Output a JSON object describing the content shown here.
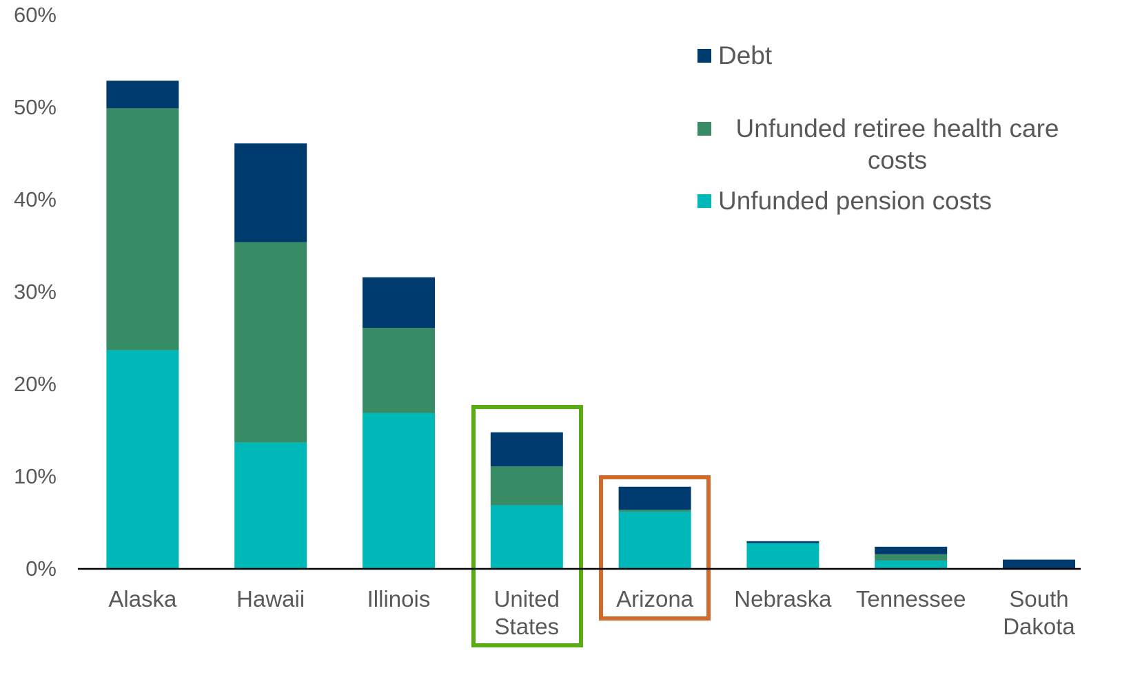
{
  "chart_data": {
    "type": "stacked_bar",
    "categories": [
      "Alaska",
      "Hawaii",
      "Illinois",
      "United States",
      "Arizona",
      "Nebraska",
      "Tennessee",
      "South Dakota"
    ],
    "series": [
      {
        "name": "Unfunded pension costs",
        "color": "#00b8b8",
        "values": [
          23.7,
          13.7,
          16.9,
          6.9,
          6.2,
          2.8,
          0.9,
          0
        ]
      },
      {
        "name": "Unfunded retiree health care costs",
        "color": "#378c66",
        "values": [
          26.2,
          21.7,
          9.2,
          4.2,
          0.2,
          0,
          0.7,
          0
        ]
      },
      {
        "name": "Debt",
        "color": "#003b6f",
        "values": [
          3.0,
          10.7,
          5.5,
          3.7,
          2.5,
          0.2,
          0.8,
          1.0
        ]
      }
    ],
    "ylim": [
      0,
      60
    ],
    "yticks": [
      {
        "value": 0,
        "label": "0%"
      },
      {
        "value": 10,
        "label": "10%"
      },
      {
        "value": 20,
        "label": "20%"
      },
      {
        "value": 30,
        "label": "30%"
      },
      {
        "value": 40,
        "label": "40%"
      },
      {
        "value": 50,
        "label": "50%"
      },
      {
        "value": 60,
        "label": "60%"
      }
    ],
    "legend": "top-right"
  }
}
